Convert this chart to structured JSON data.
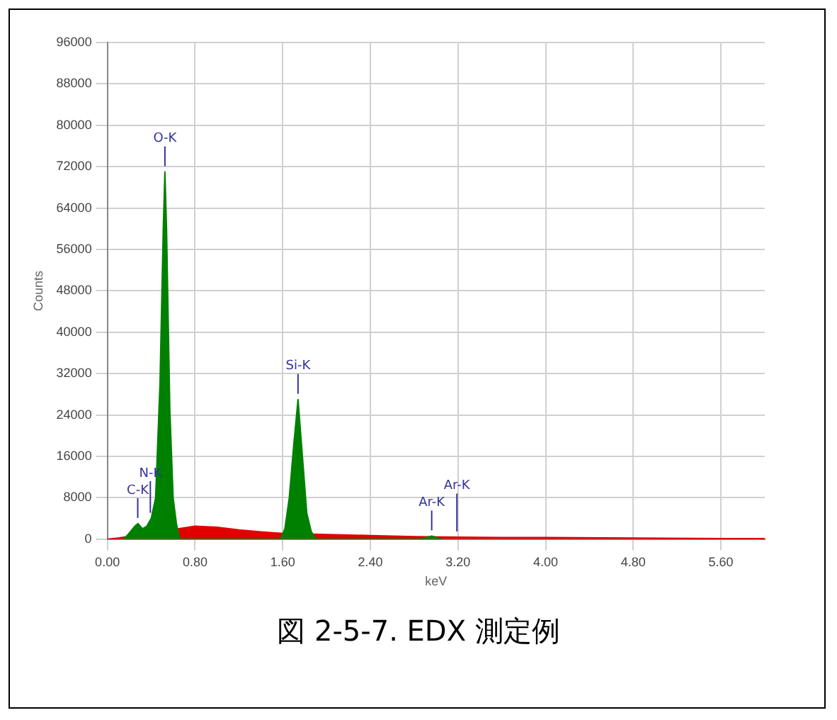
{
  "chart_data": {
    "type": "area",
    "xlabel": "keV",
    "ylabel": "Counts",
    "xlim": [
      0,
      6
    ],
    "xticks": [
      {
        "value": 0,
        "label": "0.00"
      },
      {
        "value": 0.8,
        "label": "0.80"
      },
      {
        "value": 1.6,
        "label": "1.60"
      },
      {
        "value": 2.4,
        "label": "2.40"
      },
      {
        "value": 3.2,
        "label": "3.20"
      },
      {
        "value": 4,
        "label": "4.00"
      },
      {
        "value": 4.8,
        "label": "4.80"
      },
      {
        "value": 5.6,
        "label": "5.60"
      }
    ],
    "ylim": [
      0,
      96000
    ],
    "yticks": [
      0,
      8000,
      16000,
      24000,
      32000,
      40000,
      48000,
      56000,
      64000,
      72000,
      80000,
      88000,
      96000
    ],
    "grid": true,
    "legend": false,
    "series": [
      {
        "color": "#008000",
        "x": [
          0.15,
          0.2,
          0.25,
          0.28,
          0.32,
          0.36,
          0.4,
          0.44,
          0.48,
          0.51,
          0.525,
          0.54,
          0.57,
          0.6,
          0.63,
          0.66,
          1.58,
          1.62,
          1.66,
          1.7,
          1.74,
          1.78,
          1.82,
          1.86,
          1.9,
          2.85,
          2.96,
          3.05
        ],
        "values": [
          0,
          1200,
          2500,
          3000,
          2000,
          2500,
          4000,
          8000,
          30000,
          60000,
          71000,
          60000,
          25000,
          8000,
          3000,
          0,
          0,
          2000,
          8000,
          18000,
          27000,
          16000,
          5000,
          1500,
          0,
          0,
          600,
          0
        ]
      },
      {
        "color": "#e00000",
        "x": [
          0,
          0.1,
          0.8,
          1,
          1.2,
          1.4,
          1.6,
          2,
          2.4,
          2.8,
          3.2,
          3.6,
          4,
          4.8,
          5.6,
          6
        ],
        "values": [
          0,
          200,
          2500,
          2300,
          1800,
          1400,
          1100,
          900,
          700,
          500,
          400,
          300,
          300,
          200,
          100,
          100
        ]
      }
    ],
    "annotations": [
      {
        "text": "C-K",
        "x": 0.277,
        "y": 3000
      },
      {
        "text": "N-K",
        "x": 0.392,
        "y": 4000
      },
      {
        "text": "O-K",
        "x": 0.525,
        "y": 71000
      },
      {
        "text": "Si-K",
        "x": 1.74,
        "y": 27000
      },
      {
        "text": "Ar-K",
        "x": 2.96,
        "y": 600
      },
      {
        "text": "Ar-K",
        "x": 3.19,
        "y": 400
      },
      "図 2-5-7. EDX 測定例"
    ]
  }
}
